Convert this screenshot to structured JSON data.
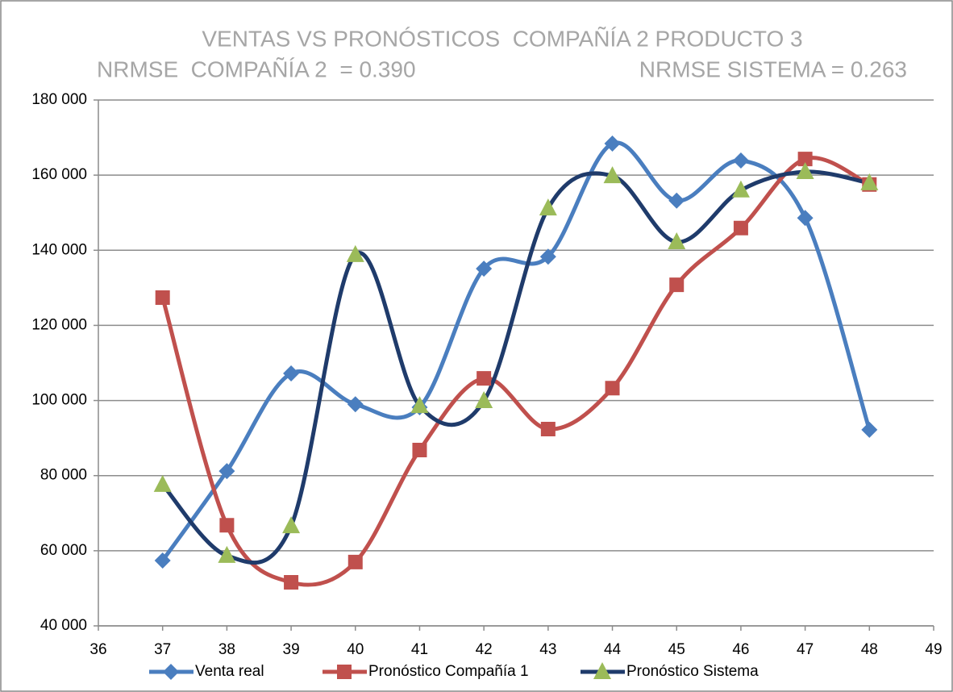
{
  "chart_data": {
    "type": "line",
    "title": "VENTAS VS PRONÓSTICOS  COMPAÑÍA 2 PRODUCTO 3",
    "subtitle": [
      "NRMSE  COMPAÑÍA 2  = 0.390",
      "NRMSE SISTEMA = 0.263"
    ],
    "x": [
      37,
      38,
      39,
      40,
      41,
      42,
      43,
      44,
      45,
      46,
      47,
      48
    ],
    "xlim": [
      36,
      49
    ],
    "xticks": [
      36,
      37,
      38,
      39,
      40,
      41,
      42,
      43,
      44,
      45,
      46,
      47,
      48,
      49
    ],
    "ylim": [
      40000,
      180000
    ],
    "yticks": [
      {
        "value": 40000,
        "label": "40 000"
      },
      {
        "value": 60000,
        "label": "60 000"
      },
      {
        "value": 80000,
        "label": "80 000"
      },
      {
        "value": 100000,
        "label": "100 000"
      },
      {
        "value": 120000,
        "label": "120 000"
      },
      {
        "value": 140000,
        "label": "140 000"
      },
      {
        "value": 160000,
        "label": "160 000"
      },
      {
        "value": 180000,
        "label": "180 000"
      }
    ],
    "grid": true,
    "smooth": true,
    "legend": "bottom",
    "series": [
      {
        "name": "Venta real",
        "color": "#4a7ebf",
        "marker": "diamond",
        "marker_color": "#4a7ebf",
        "values": [
          57400,
          81200,
          107200,
          99000,
          98200,
          135100,
          138300,
          168400,
          153200,
          163900,
          148600,
          92200
        ]
      },
      {
        "name": "Pronóstico Compañía 1",
        "color": "#c0504d",
        "marker": "square",
        "marker_color": "#c0504d",
        "values": [
          127400,
          66800,
          51600,
          57000,
          86800,
          105900,
          92400,
          103300,
          130800,
          145900,
          164300,
          157500
        ]
      },
      {
        "name": "Pronóstico Sistema",
        "color": "#1f3b6b",
        "marker": "triangle",
        "marker_color": "#9bbb59",
        "values": [
          77600,
          58700,
          66600,
          138800,
          98600,
          99900,
          151200,
          159800,
          142200,
          156000,
          160900,
          157900
        ]
      }
    ]
  }
}
